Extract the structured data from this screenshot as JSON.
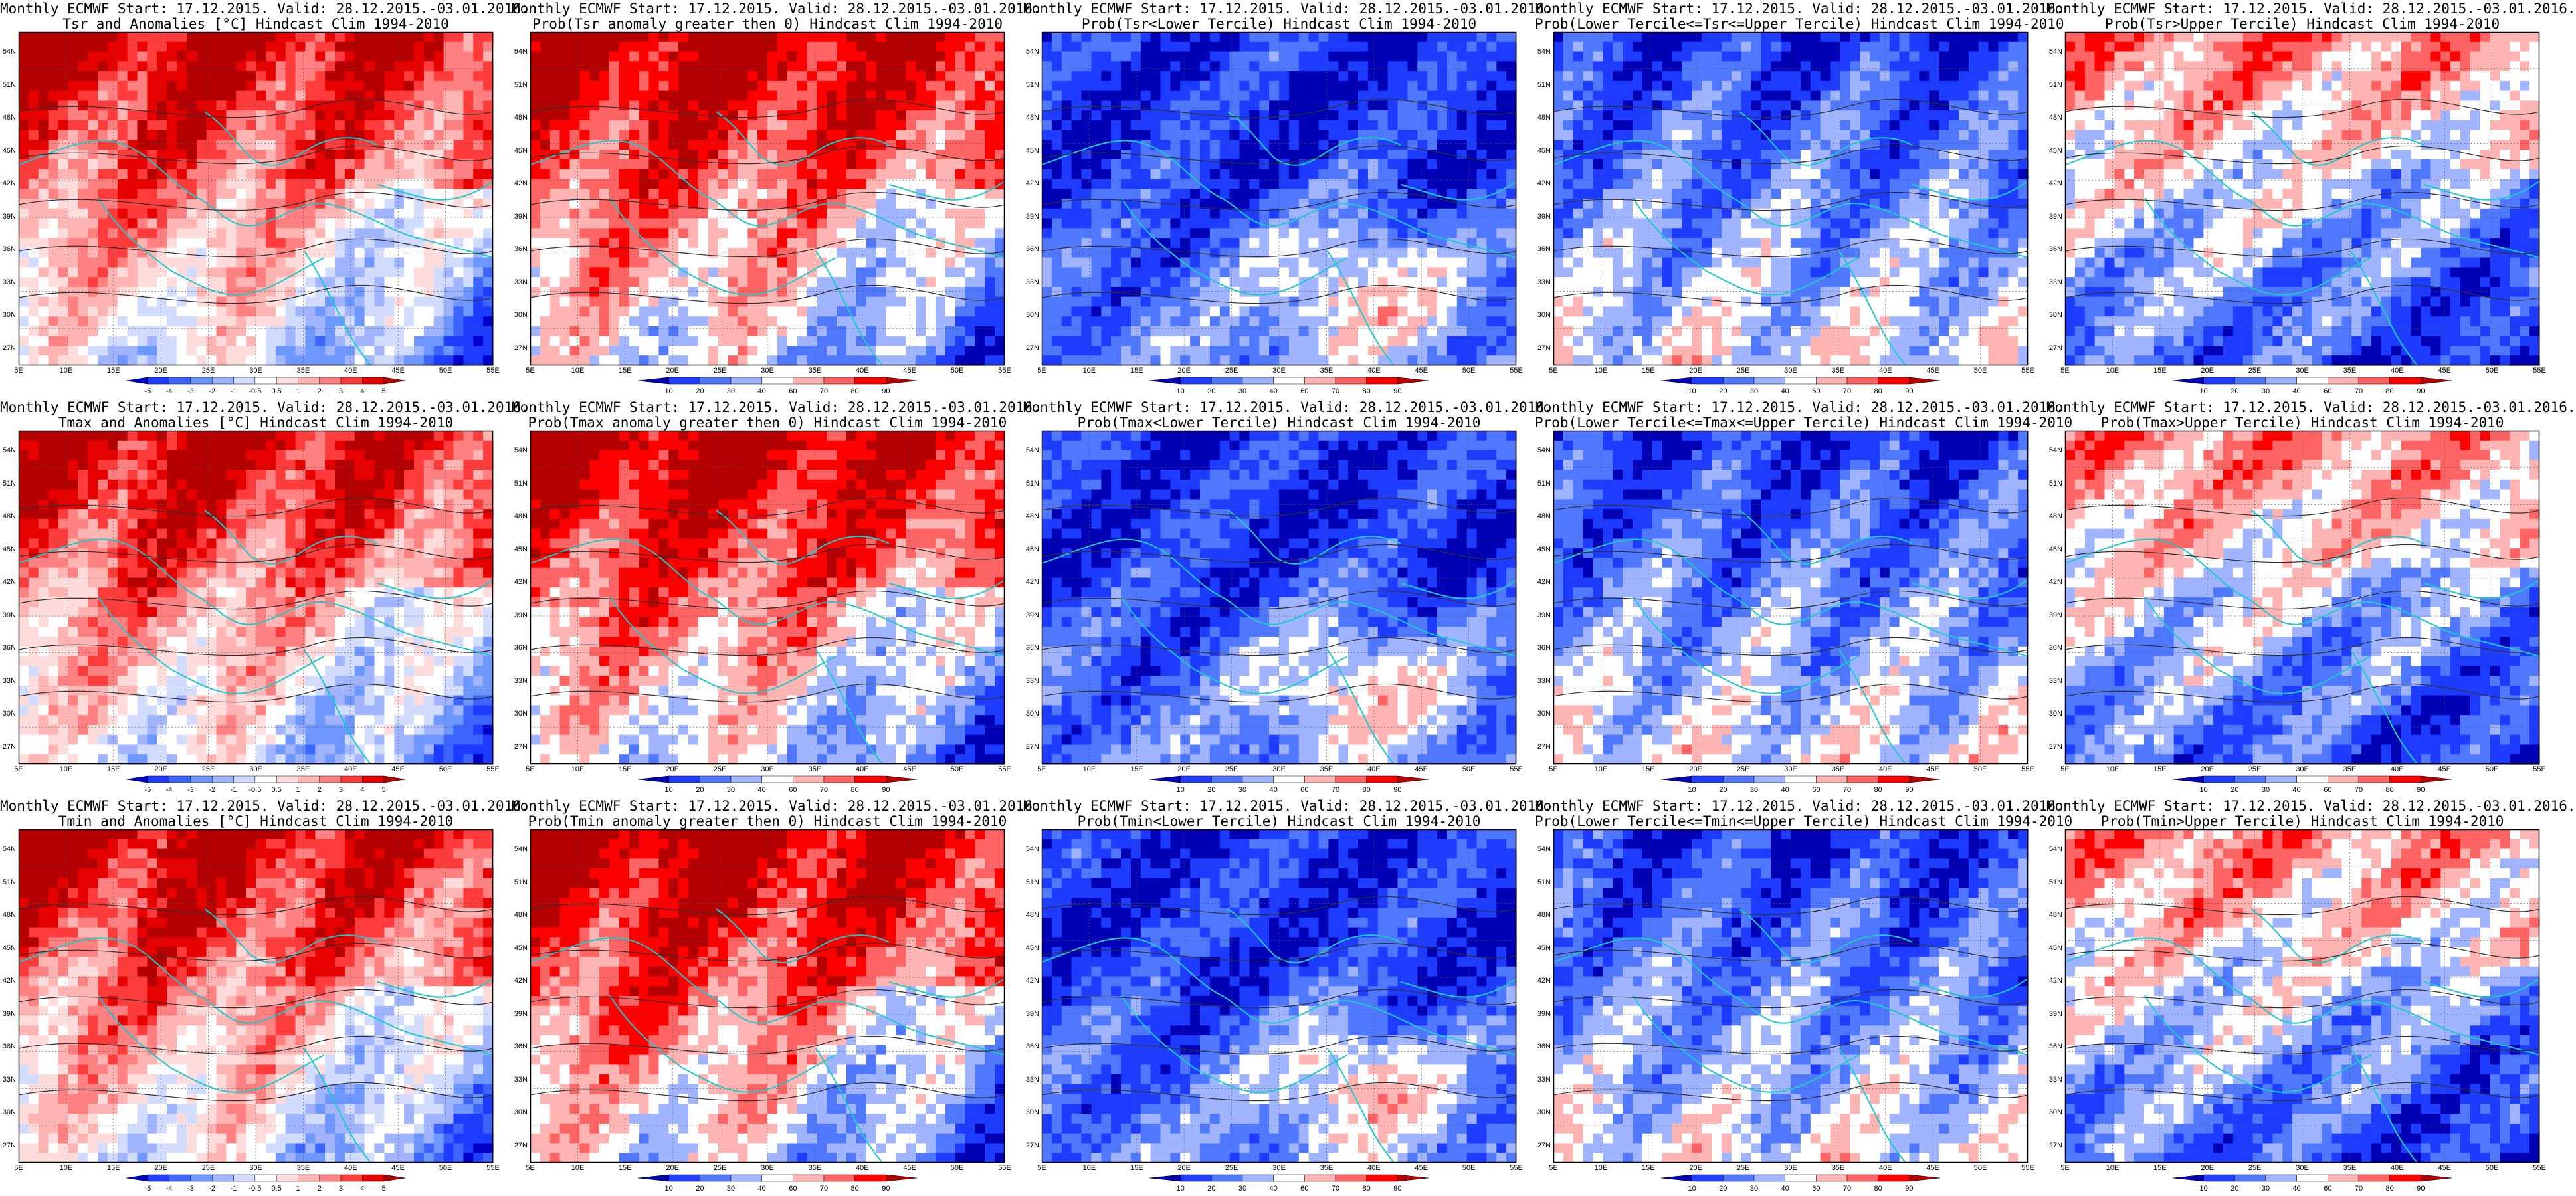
{
  "colorbars": {
    "anomaly": {
      "labels": [
        "-5",
        "-4",
        "-3",
        "-2",
        "-1",
        "-0.5",
        "0.5",
        "1",
        "2",
        "3",
        "4",
        "5"
      ],
      "colors": [
        "#0000c8",
        "#1e3cff",
        "#3c64ff",
        "#6e96ff",
        "#a0b4ff",
        "#d2dcff",
        "#ffffff",
        "#ffdcdc",
        "#ffb4b4",
        "#ff8080",
        "#ff3c3c",
        "#e60000",
        "#b40000"
      ]
    },
    "prob": {
      "labels": [
        "10",
        "20",
        "30",
        "40",
        "60",
        "70",
        "80",
        "90"
      ],
      "colors": [
        "#0000b4",
        "#1e3cff",
        "#5078ff",
        "#a0b4ff",
        "#ffffff",
        "#ffb4b4",
        "#ff6464",
        "#ff0000",
        "#b40000"
      ]
    }
  },
  "axes": {
    "lat_labels": [
      "54N",
      "51N",
      "48N",
      "45N",
      "42N",
      "39N",
      "36N",
      "33N",
      "30N",
      "27N"
    ],
    "lon_labels": [
      "5E",
      "10E",
      "15E",
      "20E",
      "25E",
      "30E",
      "35E",
      "40E",
      "45E",
      "50E",
      "55E"
    ]
  },
  "panels": [
    {
      "line1": "Monthly ECMWF Start: 17.12.2015. Valid: 28.12.2015.-03.01.2016.",
      "line2": "Tsr and Anomalies [°C] Hindcast Clim 1994-2010",
      "bar": "anomaly",
      "pattern": "anom",
      "seed": 1
    },
    {
      "line1": "Monthly ECMWF Start: 17.12.2015. Valid: 28.12.2015.-03.01.2016.",
      "line2": "Prob(Tsr anomaly greater then 0) Hindcast Clim 1994-2010",
      "bar": "prob",
      "pattern": "anom",
      "seed": 2
    },
    {
      "line1": "Monthly ECMWF Start: 17.12.2015. Valid: 28.12.2015.-03.01.2016.",
      "line2": "Prob(Tsr<Lower Tercile) Hindcast Clim 1994-2010",
      "bar": "prob",
      "pattern": "lower",
      "seed": 3
    },
    {
      "line1": "Monthly ECMWF Start: 17.12.2015. Valid: 28.12.2015.-03.01.2016.",
      "line2": "Prob(Lower Tercile<=Tsr<=Upper Tercile) Hindcast Clim 1994-2010",
      "bar": "prob",
      "pattern": "middle",
      "seed": 4
    },
    {
      "line1": "Monthly ECMWF Start: 17.12.2015. Valid: 28.12.2015.-03.01.2016.",
      "line2": "Prob(Tsr>Upper Tercile) Hindcast Clim 1994-2010",
      "bar": "prob",
      "pattern": "upper",
      "seed": 5
    },
    {
      "line1": "Monthly ECMWF Start: 17.12.2015. Valid: 28.12.2015.-03.01.2016.",
      "line2": "Tmax and Anomalies [°C] Hindcast Clim 1994-2010",
      "bar": "anomaly",
      "pattern": "anom",
      "seed": 6
    },
    {
      "line1": "Monthly ECMWF Start: 17.12.2015. Valid: 28.12.2015.-03.01.2016.",
      "line2": "Prob(Tmax anomaly greater then 0) Hindcast Clim 1994-2010",
      "bar": "prob",
      "pattern": "anom",
      "seed": 7
    },
    {
      "line1": "Monthly ECMWF Start: 17.12.2015. Valid: 28.12.2015.-03.01.2016.",
      "line2": "Prob(Tmax<Lower Tercile) Hindcast Clim 1994-2010",
      "bar": "prob",
      "pattern": "lower",
      "seed": 8
    },
    {
      "line1": "Monthly ECMWF Start: 17.12.2015. Valid: 28.12.2015.-03.01.2016.",
      "line2": "Prob(Lower Tercile<=Tmax<=Upper Tercile) Hindcast Clim 1994-2010",
      "bar": "prob",
      "pattern": "middle",
      "seed": 9
    },
    {
      "line1": "Monthly ECMWF Start: 17.12.2015. Valid: 28.12.2015.-03.01.2016.",
      "line2": "Prob(Tmax>Upper Tercile) Hindcast Clim 1994-2010",
      "bar": "prob",
      "pattern": "upper",
      "seed": 10
    },
    {
      "line1": "Monthly ECMWF Start: 17.12.2015. Valid: 28.12.2015.-03.01.2016.",
      "line2": "Tmin and Anomalies [°C] Hindcast Clim 1994-2010",
      "bar": "anomaly",
      "pattern": "anom",
      "seed": 11
    },
    {
      "line1": "Monthly ECMWF Start: 17.12.2015. Valid: 28.12.2015.-03.01.2016.",
      "line2": "Prob(Tmin anomaly greater then 0) Hindcast Clim 1994-2010",
      "bar": "prob",
      "pattern": "anom",
      "seed": 12
    },
    {
      "line1": "Monthly ECMWF Start: 17.12.2015. Valid: 28.12.2015.-03.01.2016.",
      "line2": "Prob(Tmin<Lower Tercile) Hindcast Clim 1994-2010",
      "bar": "prob",
      "pattern": "lower",
      "seed": 13
    },
    {
      "line1": "Monthly ECMWF Start: 17.12.2015. Valid: 28.12.2015.-03.01.2016.",
      "line2": "Prob(Lower Tercile<=Tmin<=Upper Tercile) Hindcast Clim 1994-2010",
      "bar": "prob",
      "pattern": "middle",
      "seed": 14
    },
    {
      "line1": "Monthly ECMWF Start: 17.12.2015. Valid: 28.12.2015.-03.01.2016.",
      "line2": "Prob(Tmin>Upper Tercile) Hindcast Clim 1994-2010",
      "bar": "prob",
      "pattern": "upper",
      "seed": 15
    }
  ]
}
